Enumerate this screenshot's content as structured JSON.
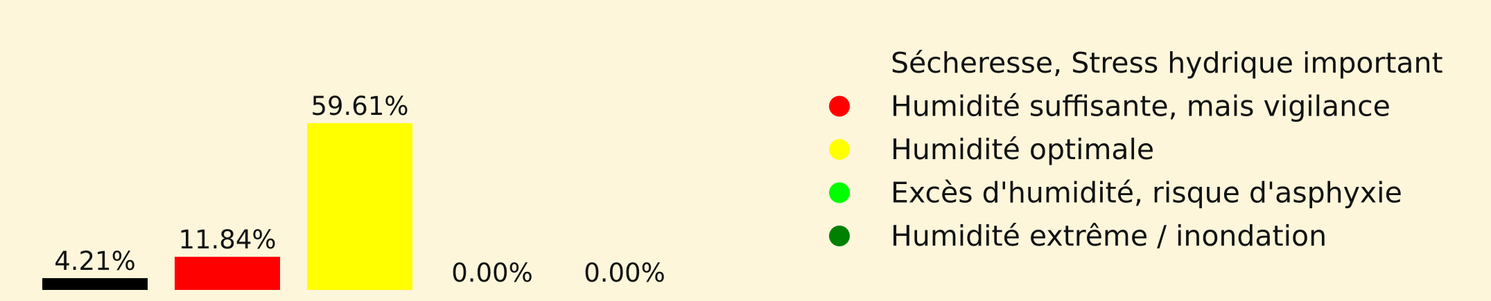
{
  "chart_data": {
    "type": "bar",
    "categories": [
      "Sécheresse, Stress hydrique important",
      "Humidité suffisante, mais vigilance",
      "Humidité optimale",
      "Excès d'humidité, risque d'asphyxie",
      "Humidité extrême / inondation"
    ],
    "values": [
      4.21,
      11.84,
      59.61,
      0.0,
      0.0
    ],
    "value_labels": [
      "4.21%",
      "11.84%",
      "59.61%",
      "0.00%",
      "0.00%"
    ],
    "colors": [
      "#000000",
      "#ff0000",
      "#ffff00",
      "#00ff00",
      "#008000"
    ],
    "background": "#fdf6da",
    "legend_placement": "right",
    "axes_visible": false,
    "grid": false
  }
}
